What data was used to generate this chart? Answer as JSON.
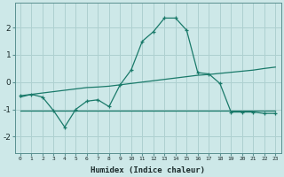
{
  "x": [
    0,
    1,
    2,
    3,
    4,
    5,
    6,
    7,
    8,
    9,
    10,
    11,
    12,
    13,
    14,
    15,
    16,
    17,
    18,
    19,
    20,
    21,
    22,
    23
  ],
  "y_curve": [
    -0.5,
    -0.45,
    -0.55,
    -1.05,
    -1.65,
    -1.0,
    -0.7,
    -0.65,
    -0.9,
    -0.1,
    0.45,
    1.5,
    1.85,
    2.35,
    2.35,
    1.9,
    0.35,
    0.3,
    -0.05,
    -1.1,
    -1.1,
    -1.1,
    -1.15,
    -1.15
  ],
  "y_line1": [
    -0.55,
    -0.45,
    -0.4,
    -0.35,
    -0.3,
    -0.25,
    -0.2,
    -0.18,
    -0.15,
    -0.1,
    -0.05,
    0.0,
    0.05,
    0.1,
    0.15,
    0.2,
    0.25,
    0.28,
    0.32,
    0.36,
    0.4,
    0.44,
    0.5,
    0.55
  ],
  "y_line2": [
    -1.05,
    -1.05,
    -1.05,
    -1.05,
    -1.05,
    -1.05,
    -1.05,
    -1.05,
    -1.05,
    -1.05,
    -1.05,
    -1.05,
    -1.05,
    -1.05,
    -1.05,
    -1.05,
    -1.05,
    -1.05,
    -1.05,
    -1.05,
    -1.05,
    -1.05,
    -1.05,
    -1.05
  ],
  "background_color": "#cde8e8",
  "grid_color": "#aed0d0",
  "line_color": "#1a7a6a",
  "xlabel": "Humidex (Indice chaleur)",
  "ylim": [
    -2.6,
    2.9
  ],
  "xlim": [
    -0.5,
    23.5
  ],
  "yticks": [
    -2,
    -1,
    0,
    1,
    2
  ],
  "xticks": [
    0,
    1,
    2,
    3,
    4,
    5,
    6,
    7,
    8,
    9,
    10,
    11,
    12,
    13,
    14,
    15,
    16,
    17,
    18,
    19,
    20,
    21,
    22,
    23
  ]
}
